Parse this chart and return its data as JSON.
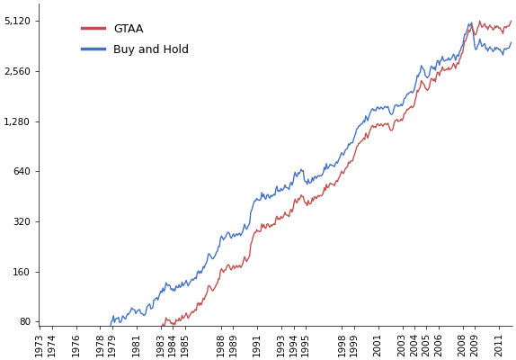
{
  "title": "",
  "xlabel": "",
  "ylabel": "",
  "gtaa_color": "#C0504D",
  "bah_color": "#4472C4",
  "gtaa_label": "GTAA",
  "bah_label": "Buy and Hold",
  "start_year": 1973,
  "end_year": 2012,
  "yticks": [
    80,
    160,
    320,
    640,
    1280,
    2560,
    5120
  ],
  "ylim_min": 75,
  "ylim_max": 6500,
  "xtick_years": [
    1973,
    1974,
    1976,
    1978,
    1979,
    1981,
    1983,
    1984,
    1985,
    1988,
    1989,
    1991,
    1993,
    1994,
    1995,
    1998,
    1999,
    2001,
    2003,
    2004,
    2005,
    2006,
    2008,
    2009,
    2011
  ],
  "line_width": 1.0,
  "legend_fontsize": 9,
  "tick_fontsize": 7.5,
  "background_color": "#FFFFFF",
  "seed": 42
}
